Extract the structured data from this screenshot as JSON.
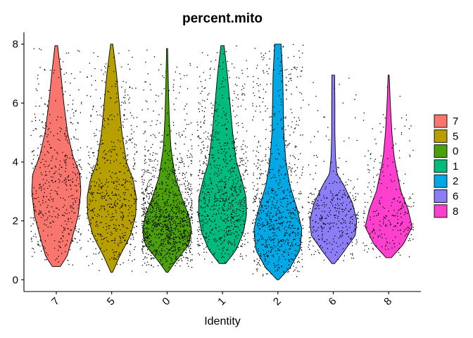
{
  "chart_data": {
    "type": "violin",
    "title": "percent.mito",
    "xlabel": "Identity",
    "ylabel": "",
    "ylim": [
      -0.4,
      8.4
    ],
    "yticks": [
      0,
      2,
      4,
      6,
      8
    ],
    "categories": [
      "7",
      "5",
      "0",
      "1",
      "2",
      "6",
      "8"
    ],
    "series": [
      {
        "category": "7",
        "color": "#F8766D",
        "min": 0.45,
        "max": 7.95,
        "median": 2.9,
        "n_points": 500,
        "profile": [
          [
            0.45,
            0.15
          ],
          [
            0.8,
            0.4
          ],
          [
            1.5,
            0.62
          ],
          [
            2.2,
            0.82
          ],
          [
            3.0,
            0.92
          ],
          [
            3.6,
            0.88
          ],
          [
            4.2,
            0.62
          ],
          [
            5.0,
            0.42
          ],
          [
            6.0,
            0.28
          ],
          [
            7.0,
            0.17
          ],
          [
            7.95,
            0.05
          ]
        ]
      },
      {
        "category": "5",
        "color": "#B79F00",
        "min": 0.25,
        "max": 8.0,
        "median": 2.6,
        "n_points": 600,
        "profile": [
          [
            0.25,
            0.03
          ],
          [
            0.8,
            0.3
          ],
          [
            1.5,
            0.7
          ],
          [
            2.2,
            0.9
          ],
          [
            2.8,
            0.92
          ],
          [
            3.4,
            0.8
          ],
          [
            4.0,
            0.55
          ],
          [
            5.0,
            0.38
          ],
          [
            6.0,
            0.28
          ],
          [
            7.0,
            0.18
          ],
          [
            8.0,
            0.04
          ]
        ]
      },
      {
        "category": "0",
        "color": "#4BA00C",
        "min": 0.25,
        "max": 7.85,
        "median": 1.9,
        "n_points": 1200,
        "profile": [
          [
            0.25,
            0.03
          ],
          [
            0.6,
            0.3
          ],
          [
            1.2,
            0.82
          ],
          [
            1.7,
            0.92
          ],
          [
            2.2,
            0.8
          ],
          [
            2.8,
            0.55
          ],
          [
            3.5,
            0.3
          ],
          [
            4.5,
            0.14
          ],
          [
            5.5,
            0.08
          ],
          [
            6.5,
            0.05
          ],
          [
            7.85,
            0.02
          ]
        ]
      },
      {
        "category": "1",
        "color": "#00BA7E",
        "min": 0.55,
        "max": 7.95,
        "median": 2.6,
        "n_points": 800,
        "profile": [
          [
            0.55,
            0.12
          ],
          [
            1.0,
            0.5
          ],
          [
            1.6,
            0.78
          ],
          [
            2.2,
            0.9
          ],
          [
            2.8,
            0.88
          ],
          [
            3.4,
            0.72
          ],
          [
            4.0,
            0.52
          ],
          [
            5.0,
            0.38
          ],
          [
            6.0,
            0.28
          ],
          [
            7.0,
            0.18
          ],
          [
            7.95,
            0.06
          ]
        ]
      },
      {
        "category": "2",
        "color": "#00A9E6",
        "min": 0.0,
        "max": 8.0,
        "median": 1.7,
        "n_points": 800,
        "profile": [
          [
            0.0,
            0.03
          ],
          [
            0.4,
            0.45
          ],
          [
            1.0,
            0.82
          ],
          [
            1.7,
            0.9
          ],
          [
            2.4,
            0.72
          ],
          [
            3.2,
            0.45
          ],
          [
            4.0,
            0.3
          ],
          [
            5.0,
            0.22
          ],
          [
            6.0,
            0.2
          ],
          [
            7.0,
            0.18
          ],
          [
            8.0,
            0.12
          ]
        ]
      },
      {
        "category": "6",
        "color": "#8B7DF5",
        "min": 0.55,
        "max": 6.95,
        "median": 2.0,
        "n_points": 350,
        "profile": [
          [
            0.55,
            0.05
          ],
          [
            0.9,
            0.35
          ],
          [
            1.5,
            0.82
          ],
          [
            2.0,
            0.88
          ],
          [
            2.6,
            0.72
          ],
          [
            3.2,
            0.4
          ],
          [
            3.6,
            0.14
          ],
          [
            4.2,
            0.08
          ],
          [
            5.0,
            0.06
          ],
          [
            6.0,
            0.06
          ],
          [
            6.95,
            0.05
          ]
        ]
      },
      {
        "category": "8",
        "color": "#FF3FCD",
        "min": 0.75,
        "max": 6.95,
        "median": 2.1,
        "n_points": 260,
        "profile": [
          [
            0.75,
            0.1
          ],
          [
            1.2,
            0.55
          ],
          [
            1.8,
            0.88
          ],
          [
            2.4,
            0.72
          ],
          [
            3.0,
            0.46
          ],
          [
            3.6,
            0.32
          ],
          [
            4.2,
            0.2
          ],
          [
            5.0,
            0.12
          ],
          [
            6.0,
            0.06
          ],
          [
            6.95,
            0.02
          ]
        ]
      }
    ],
    "legend": {
      "position": "right",
      "entries": [
        {
          "label": "7",
          "color": "#F8766D"
        },
        {
          "label": "5",
          "color": "#B79F00"
        },
        {
          "label": "0",
          "color": "#4BA00C"
        },
        {
          "label": "1",
          "color": "#00BA7E"
        },
        {
          "label": "2",
          "color": "#00A9E6"
        },
        {
          "label": "6",
          "color": "#8B7DF5"
        },
        {
          "label": "8",
          "color": "#FF3FCD"
        }
      ]
    },
    "grid": false,
    "jitter_points": true
  }
}
